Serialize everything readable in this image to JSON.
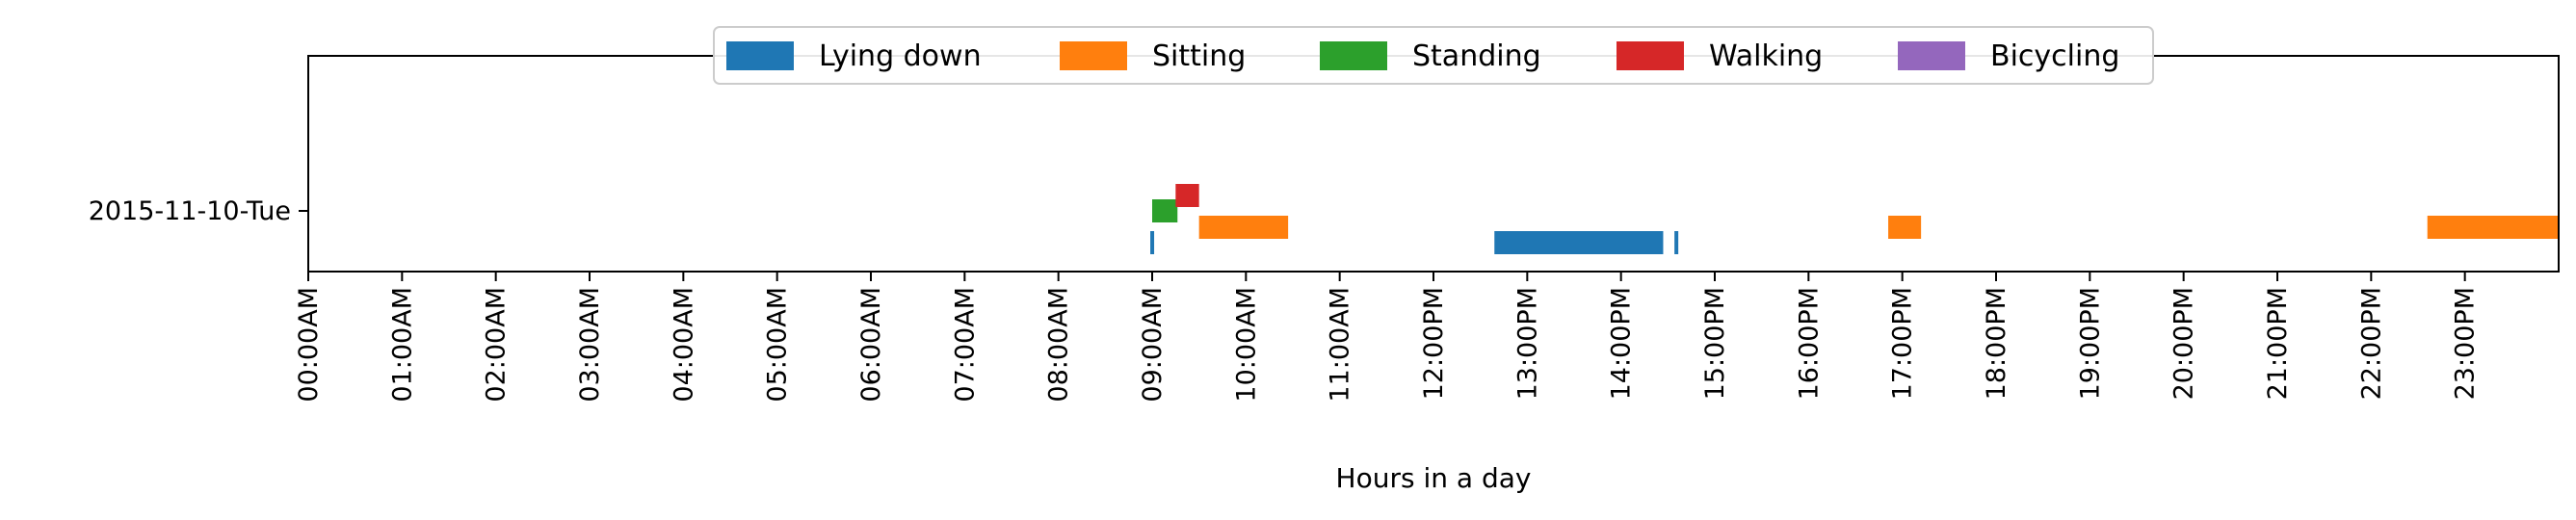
{
  "chart_data": {
    "type": "timeline",
    "title": "",
    "xlabel": "Hours in a day",
    "ylabel": "",
    "xlim": [
      0,
      24
    ],
    "x_ticks": [
      {
        "value": 0,
        "label": "00:00AM"
      },
      {
        "value": 1,
        "label": "01:00AM"
      },
      {
        "value": 2,
        "label": "02:00AM"
      },
      {
        "value": 3,
        "label": "03:00AM"
      },
      {
        "value": 4,
        "label": "04:00AM"
      },
      {
        "value": 5,
        "label": "05:00AM"
      },
      {
        "value": 6,
        "label": "06:00AM"
      },
      {
        "value": 7,
        "label": "07:00AM"
      },
      {
        "value": 8,
        "label": "08:00AM"
      },
      {
        "value": 9,
        "label": "09:00AM"
      },
      {
        "value": 10,
        "label": "10:00AM"
      },
      {
        "value": 11,
        "label": "11:00AM"
      },
      {
        "value": 12,
        "label": "12:00PM"
      },
      {
        "value": 13,
        "label": "13:00PM"
      },
      {
        "value": 14,
        "label": "14:00PM"
      },
      {
        "value": 15,
        "label": "15:00PM"
      },
      {
        "value": 16,
        "label": "16:00PM"
      },
      {
        "value": 17,
        "label": "17:00PM"
      },
      {
        "value": 18,
        "label": "18:00PM"
      },
      {
        "value": 19,
        "label": "19:00PM"
      },
      {
        "value": 20,
        "label": "20:00PM"
      },
      {
        "value": 21,
        "label": "21:00PM"
      },
      {
        "value": 22,
        "label": "22:00PM"
      },
      {
        "value": 23,
        "label": "23:00PM"
      }
    ],
    "y_categories": [
      "2015-11-10-Tue"
    ],
    "grid": false,
    "legend_position": "top-center",
    "series": [
      {
        "name": "Lying down",
        "color": "#1f77b4",
        "segments": [
          [
            8.98,
            9.01
          ],
          [
            12.65,
            14.45
          ],
          [
            14.57,
            14.6
          ]
        ]
      },
      {
        "name": "Sitting",
        "color": "#ff7f0e",
        "segments": [
          [
            9.5,
            10.45
          ],
          [
            16.85,
            17.2
          ],
          [
            22.6,
            24.0
          ]
        ]
      },
      {
        "name": "Standing",
        "color": "#2ca02c",
        "segments": [
          [
            9.0,
            9.27
          ]
        ]
      },
      {
        "name": "Walking",
        "color": "#d62728",
        "segments": [
          [
            9.25,
            9.5
          ]
        ]
      },
      {
        "name": "Bicycling",
        "color": "#9467bd",
        "segments": []
      }
    ]
  }
}
